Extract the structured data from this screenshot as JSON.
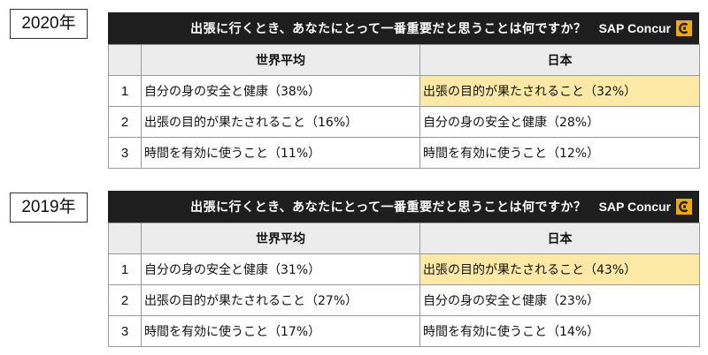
{
  "question": "出張に行くとき、あなたにとって一番重要だと思うことは何ですか？",
  "brand": "SAP Concur",
  "columns": {
    "world": "世界平均",
    "japan": "日本"
  },
  "highlight_color": "#fde9a6",
  "header_color": "#1e1e1e",
  "brand_accent_color": "#f0ab00",
  "blocks": [
    {
      "year": "2020年",
      "rows": [
        {
          "rank": "1",
          "world": "自分の身の安全と健康（38%）",
          "japan": "出張の目的が果たされること（32%）"
        },
        {
          "rank": "2",
          "world": "出張の目的が果たされること（16%）",
          "japan": "自分の身の安全と健康（28%）"
        },
        {
          "rank": "3",
          "world": "時間を有効に使うこと（11%）",
          "japan": "時間を有効に使うこと（12%）"
        }
      ]
    },
    {
      "year": "2019年",
      "rows": [
        {
          "rank": "1",
          "world": "自分の身の安全と健康（31%）",
          "japan": "出張の目的が果たされること（43%）"
        },
        {
          "rank": "2",
          "world": "出張の目的が果たされること（27%）",
          "japan": "自分の身の安全と健康（23%）"
        },
        {
          "rank": "3",
          "world": "時間を有効に使うこと（17%）",
          "japan": "時間を有効に使うこと（14%）"
        }
      ]
    }
  ]
}
